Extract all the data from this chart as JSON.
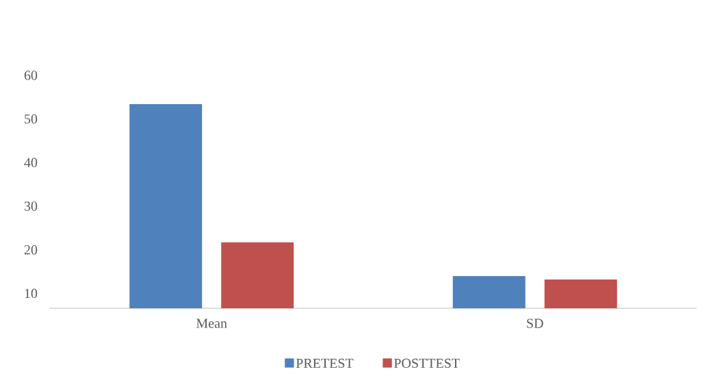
{
  "chart_data": {
    "type": "bar",
    "categories": [
      "Mean",
      "SD"
    ],
    "series": [
      {
        "name": "PRETEST",
        "color": "#4f81bd",
        "values": [
          53.4,
          14.0
        ]
      },
      {
        "name": "POSTTEST",
        "color": "#c0504d",
        "values": [
          21.7,
          13.2
        ]
      }
    ],
    "ylim": [
      6.6,
      60
    ],
    "yticks": [
      10,
      20,
      30,
      40,
      50,
      60
    ],
    "legend": "bottom"
  }
}
